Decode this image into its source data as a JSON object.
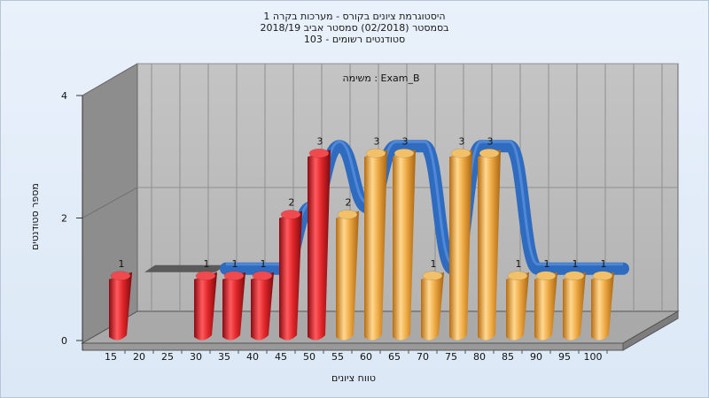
{
  "chart_data": {
    "type": "bar",
    "title_lines": [
      "היסטוגרמת ציונים בקורס - מערכות בקרה 1",
      "בסמסטר  (02/2018)  סמסטר אביב 2018/19",
      "סטודנטים רשומים - 103"
    ],
    "subtitle": "משימה : Exam_B",
    "xlabel": "טווח ציונים",
    "ylabel": "מספר סטודנטים",
    "ylim": [
      0,
      4
    ],
    "yticks": [
      0,
      2,
      4
    ],
    "categories": [
      "15",
      "20",
      "25",
      "30",
      "35",
      "40",
      "45",
      "50",
      "55",
      "60",
      "65",
      "70",
      "75",
      "80",
      "85",
      "90",
      "95",
      "100"
    ],
    "series": [
      {
        "values": [
          1,
          0,
          0,
          1,
          1,
          1,
          2,
          3,
          2,
          3,
          3,
          1,
          3,
          3,
          1,
          1,
          1,
          1
        ],
        "colors": [
          "red",
          "red",
          "red",
          "red",
          "red",
          "red",
          "red",
          "red",
          "orange",
          "orange",
          "orange",
          "orange",
          "orange",
          "orange",
          "orange",
          "orange",
          "orange",
          "orange"
        ]
      }
    ],
    "trend_line": true,
    "grid": true,
    "colors": {
      "red_bar": "#e0262a",
      "orange_bar": "#eeaa44",
      "trend": "#2f6bbf",
      "plot_back": "#bcbcbc",
      "plot_side": "#8a8a8a"
    }
  }
}
